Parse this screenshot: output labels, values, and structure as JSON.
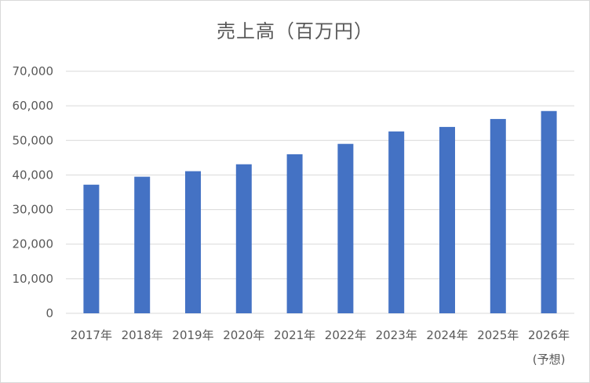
{
  "chart_data": {
    "type": "bar",
    "title": "売上高（百万円）",
    "categories": [
      "2017年",
      "2018年",
      "2019年",
      "2020年",
      "2021年",
      "2022年",
      "2023年",
      "2024年",
      "2025年",
      "2026年"
    ],
    "category_notes": [
      "",
      "",
      "",
      "",
      "",
      "",
      "",
      "",
      "",
      "(予想)"
    ],
    "values": [
      37200,
      39500,
      41100,
      43100,
      46000,
      49000,
      52600,
      53900,
      56200,
      58500
    ],
    "yticks": [
      "0",
      "10,000",
      "20,000",
      "30,000",
      "40,000",
      "50,000",
      "60,000",
      "70,000"
    ],
    "ylim": [
      0,
      70000
    ],
    "grid": true,
    "bar_color": "#4472c4",
    "legend": "none",
    "xlabel": "",
    "ylabel": ""
  }
}
